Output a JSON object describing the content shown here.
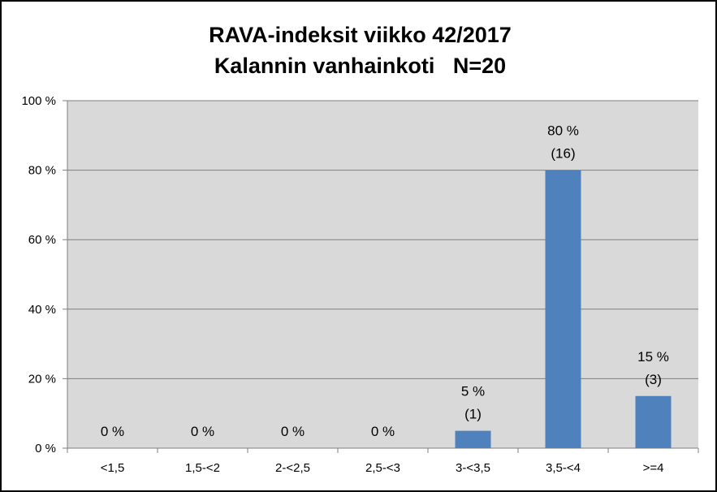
{
  "chart_data": {
    "type": "bar",
    "title": "RAVA-indeksit viikko 42/2017",
    "subtitle": "Kalannin vanhainkoti   N=20",
    "categories": [
      "<1,5",
      "1,5-<2",
      "2-<2,5",
      "2,5-<3",
      "3-<3,5",
      "3,5-<4",
      ">=4"
    ],
    "values": [
      0,
      0,
      0,
      0,
      5,
      80,
      15
    ],
    "counts": [
      null,
      null,
      null,
      null,
      1,
      16,
      3
    ],
    "value_labels": [
      "0 %",
      "0 %",
      "0 %",
      "0 %",
      "5 %",
      "80 %",
      "15 %"
    ],
    "count_labels": [
      "",
      "",
      "",
      "",
      "(1)",
      "(16)",
      "(3)"
    ],
    "y_ticks": [
      0,
      20,
      40,
      60,
      80,
      100
    ],
    "y_tick_labels": [
      "0 %",
      "20 %",
      "40 %",
      "60 %",
      "80 %",
      "100 %"
    ],
    "ylim": [
      0,
      100
    ],
    "xlabel": "",
    "ylabel": "",
    "grid": true,
    "legend": "none",
    "colors": {
      "bar": "#4f81bd",
      "plot_background": "#d9d9d9",
      "gridline": "#7f7f7f"
    }
  }
}
